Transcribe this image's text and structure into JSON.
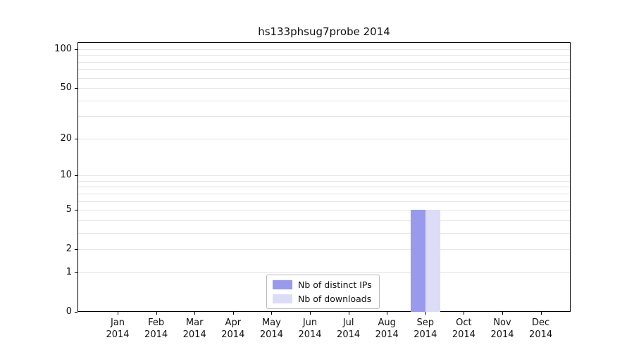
{
  "title": "hs133phsug7probe 2014",
  "chart_data": {
    "type": "bar",
    "title": "hs133phsug7probe 2014",
    "categories": [
      "Jan",
      "Feb",
      "Mar",
      "Apr",
      "May",
      "Jun",
      "Jul",
      "Aug",
      "Sep",
      "Oct",
      "Nov",
      "Dec"
    ],
    "category_year": "2014",
    "series": [
      {
        "name": "Nb of distinct IPs",
        "color": "#9999ee",
        "values": [
          0,
          0,
          0,
          0,
          0,
          0,
          0,
          0,
          5,
          0,
          0,
          0
        ]
      },
      {
        "name": "Nb of downloads",
        "color": "#dcdcf7",
        "values": [
          0,
          0,
          0,
          0,
          0,
          0,
          0,
          0,
          5,
          0,
          0,
          0
        ]
      }
    ],
    "y_ticks": [
      0,
      1,
      2,
      5,
      10,
      20,
      50,
      100
    ],
    "y_gridlines": [
      1,
      2,
      3,
      4,
      5,
      6,
      7,
      8,
      9,
      10,
      20,
      30,
      40,
      50,
      60,
      70,
      80,
      90,
      100
    ],
    "y_scale": "log10(1+v)",
    "ylim": [
      0,
      100
    ],
    "legend_position": "bottom-center-inside",
    "grid": true
  },
  "colors": {
    "bar_distinct_ips": "#9999ee",
    "bar_downloads": "#dcdcf7",
    "gridline": "#e5e5e5",
    "axis": "#000000",
    "background": "#ffffff"
  }
}
